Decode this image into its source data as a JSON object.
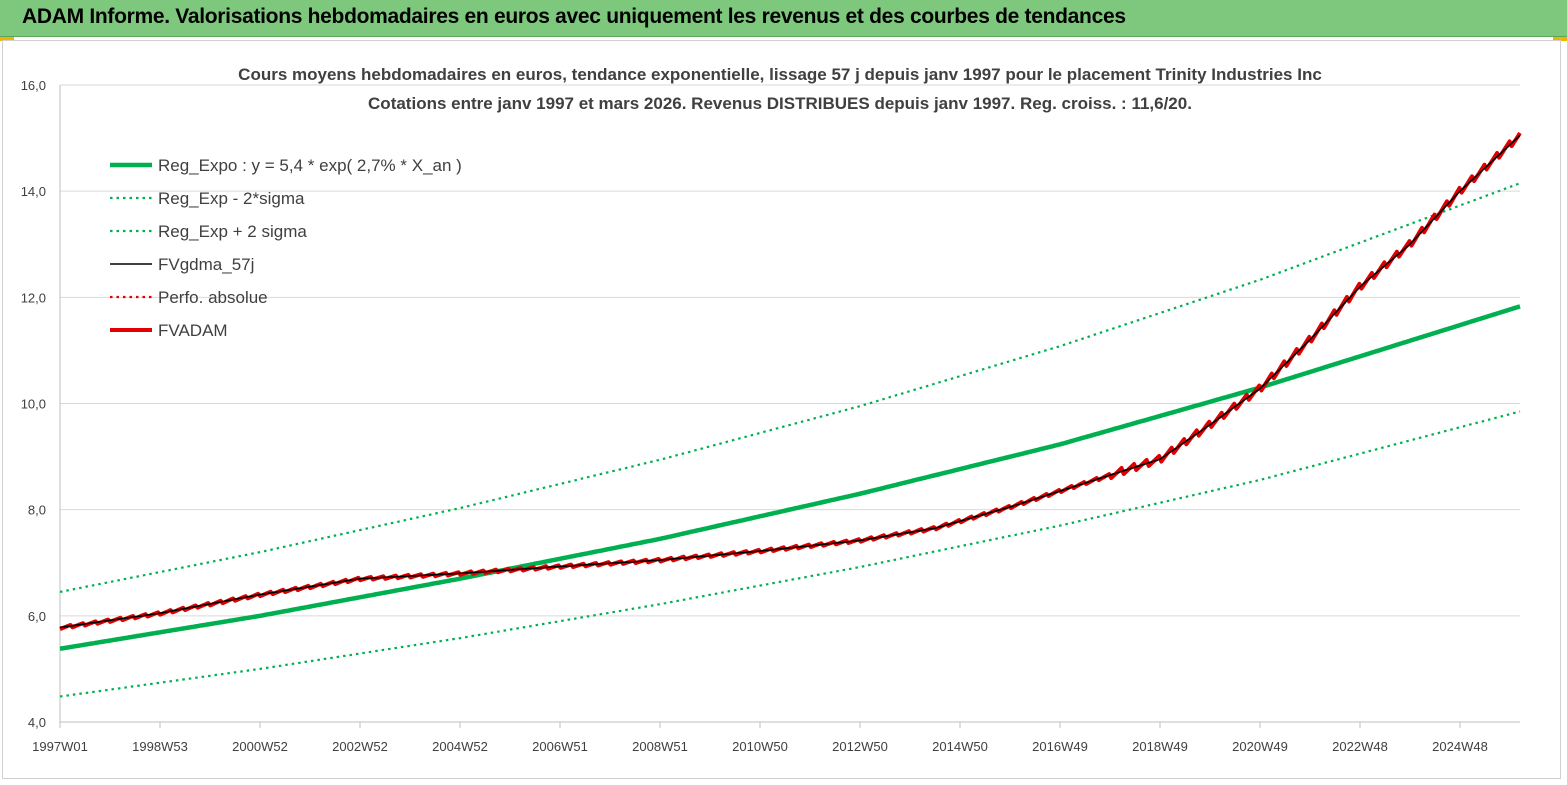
{
  "banner": {
    "title": "ADAM Informe. Valorisations hebdomadaires en euros avec uniquement les revenus et des courbes de tendances"
  },
  "colors": {
    "banner": "#7dc87d",
    "trend": "#00b050",
    "gdma": "#000000",
    "adam": "#e00000",
    "grid": "#d9d9d9"
  },
  "chart_data": {
    "type": "line",
    "title": "Cours moyens hebdomadaires en euros, tendance exponentielle, lissage 57 j depuis janv 1997 pour le  placement Trinity Industries Inc",
    "subtitle": "Cotations entre janv 1997 et mars 2026. Revenus DISTRIBUES depuis janv 1997. Reg. croiss. : 11,6/20.",
    "xlabel": "",
    "ylabel": "",
    "x_range": [
      1997.0,
      2026.2
    ],
    "ylim": [
      4.0,
      16.0
    ],
    "y_ticks": [
      "4,0",
      "6,0",
      "8,0",
      "10,0",
      "12,0",
      "14,0",
      "16,0"
    ],
    "y_tick_values": [
      4,
      6,
      8,
      10,
      12,
      14,
      16
    ],
    "x_ticks": [
      "1997W01",
      "1998W53",
      "2000W52",
      "2002W52",
      "2004W52",
      "2006W51",
      "2008W51",
      "2010W50",
      "2012W50",
      "2014W50",
      "2016W49",
      "2018W49",
      "2020W49",
      "2022W48",
      "2024W48"
    ],
    "x_tick_values": [
      1997.0,
      1999.0,
      2001.0,
      2003.0,
      2005.0,
      2007.0,
      2009.0,
      2011.0,
      2013.0,
      2015.0,
      2017.0,
      2019.0,
      2021.0,
      2023.0,
      2025.0
    ],
    "grid": "horizontal",
    "legend_placement": "top-left",
    "series": [
      {
        "name": "Reg_Expo : y = 5,4 * exp( 2,7% *  X_an )",
        "style": "solid-thick",
        "color": "#00b050",
        "x": [
          1997.0,
          2001.0,
          2005.0,
          2009.0,
          2013.0,
          2017.0,
          2021.0,
          2026.2
        ],
        "y": [
          5.38,
          6.0,
          6.7,
          7.45,
          8.3,
          9.23,
          10.3,
          11.83
        ]
      },
      {
        "name": "Reg_Exp - 2*sigma",
        "style": "dotted",
        "color": "#00b050",
        "x": [
          1997.0,
          2001.0,
          2005.0,
          2009.0,
          2013.0,
          2017.0,
          2021.0,
          2026.2
        ],
        "y": [
          4.48,
          5.0,
          5.58,
          6.22,
          6.92,
          7.7,
          8.56,
          9.85
        ]
      },
      {
        "name": "Reg_Exp + 2 sigma",
        "style": "dotted",
        "color": "#00b050",
        "x": [
          1997.0,
          2001.0,
          2005.0,
          2009.0,
          2013.0,
          2017.0,
          2021.0,
          2026.2
        ],
        "y": [
          6.45,
          7.2,
          8.03,
          8.94,
          9.95,
          11.08,
          12.33,
          14.15
        ]
      },
      {
        "name": "FVgdma_57j",
        "style": "solid-thin",
        "color": "#000000",
        "x": [
          1997.0,
          1999.0,
          2001.0,
          2003.0,
          2005.0,
          2007.0,
          2009.0,
          2011.0,
          2013.0,
          2014.5,
          2016.0,
          2017.5,
          2019.0,
          2020.0,
          2021.0,
          2022.0,
          2023.0,
          2024.0,
          2025.0,
          2026.2
        ],
        "y": [
          5.78,
          6.05,
          6.4,
          6.7,
          6.8,
          6.93,
          7.05,
          7.22,
          7.42,
          7.65,
          8.05,
          8.5,
          8.95,
          9.6,
          10.28,
          11.2,
          12.2,
          13.0,
          14.0,
          15.05
        ]
      },
      {
        "name": "Perfo. absolue",
        "style": "dotted",
        "color": "#e00000",
        "x": [
          1997.0,
          1999.0,
          2001.0,
          2003.0,
          2005.0,
          2007.0,
          2009.0,
          2011.0,
          2013.0,
          2014.5,
          2016.0,
          2017.5,
          2019.0,
          2020.0,
          2021.0,
          2022.0,
          2023.0,
          2024.0,
          2025.0,
          2026.2
        ],
        "y": [
          5.78,
          6.05,
          6.4,
          6.7,
          6.8,
          6.93,
          7.05,
          7.22,
          7.42,
          7.65,
          8.05,
          8.5,
          8.95,
          9.6,
          10.28,
          11.2,
          12.2,
          13.0,
          14.0,
          15.05
        ]
      },
      {
        "name": "FVADAM",
        "style": "solid-thick-stepped",
        "color": "#e00000",
        "x": [
          1997.0,
          1999.0,
          2001.0,
          2003.0,
          2005.0,
          2007.0,
          2009.0,
          2011.0,
          2013.0,
          2014.5,
          2016.0,
          2017.5,
          2019.0,
          2020.0,
          2021.0,
          2022.0,
          2023.0,
          2024.0,
          2025.0,
          2026.2
        ],
        "y": [
          5.78,
          6.05,
          6.4,
          6.7,
          6.8,
          6.93,
          7.05,
          7.22,
          7.42,
          7.65,
          8.05,
          8.5,
          8.95,
          9.6,
          10.28,
          11.2,
          12.2,
          13.0,
          14.0,
          15.05
        ]
      }
    ]
  }
}
